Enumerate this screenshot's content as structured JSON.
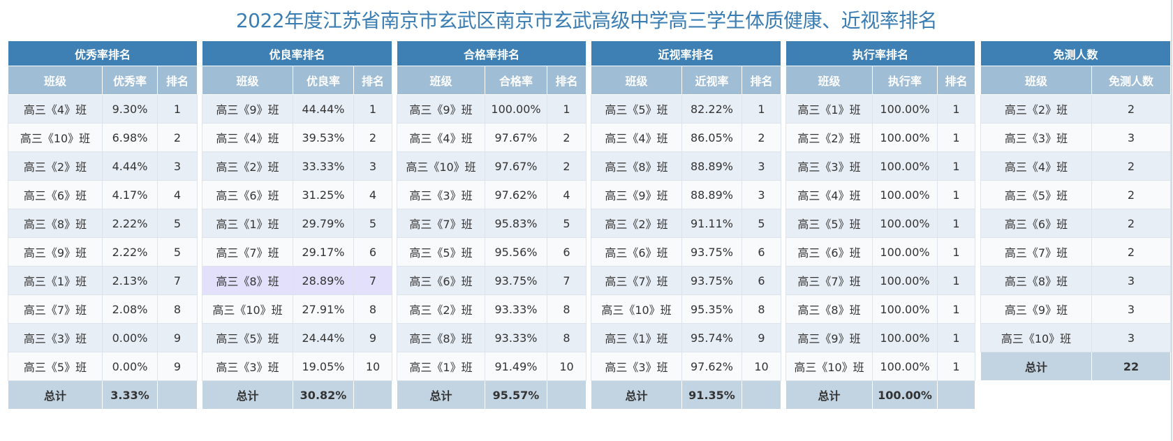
{
  "title": "2022年度江苏省南京市玄武区南京市玄武高级中学高三学生体质健康、近视率排名",
  "colors": {
    "header": "#3f80b4",
    "subheader": "#a0bdd6",
    "row_odd": "#e8eef5",
    "row_even": "#f8fafc",
    "footer": "#c2d3e2",
    "highlight": "#e3e0fb",
    "title": "#3a7db3"
  },
  "tables": [
    {
      "title": "优秀率排名",
      "headers": [
        "班级",
        "优秀率",
        "排名"
      ],
      "rows": [
        [
          "高三《4》班",
          "9.30%",
          "1"
        ],
        [
          "高三《10》班",
          "6.98%",
          "2"
        ],
        [
          "高三《2》班",
          "4.44%",
          "3"
        ],
        [
          "高三《6》班",
          "4.17%",
          "4"
        ],
        [
          "高三《8》班",
          "2.22%",
          "5"
        ],
        [
          "高三《9》班",
          "2.22%",
          "5"
        ],
        [
          "高三《1》班",
          "2.13%",
          "7"
        ],
        [
          "高三《7》班",
          "2.08%",
          "8"
        ],
        [
          "高三《3》班",
          "0.00%",
          "9"
        ],
        [
          "高三《5》班",
          "0.00%",
          "9"
        ]
      ],
      "footer": [
        "总计",
        "3.33%",
        ""
      ]
    },
    {
      "title": "优良率排名",
      "headers": [
        "班级",
        "优良率",
        "排名"
      ],
      "rows": [
        [
          "高三《9》班",
          "44.44%",
          "1"
        ],
        [
          "高三《4》班",
          "39.53%",
          "2"
        ],
        [
          "高三《2》班",
          "33.33%",
          "3"
        ],
        [
          "高三《6》班",
          "31.25%",
          "4"
        ],
        [
          "高三《1》班",
          "29.79%",
          "5"
        ],
        [
          "高三《7》班",
          "29.17%",
          "6"
        ],
        [
          "高三《8》班",
          "28.89%",
          "7"
        ],
        [
          "高三《10》班",
          "27.91%",
          "8"
        ],
        [
          "高三《5》班",
          "24.44%",
          "9"
        ],
        [
          "高三《3》班",
          "19.05%",
          "10"
        ]
      ],
      "footer": [
        "总计",
        "30.82%",
        ""
      ]
    },
    {
      "title": "合格率排名",
      "headers": [
        "班级",
        "合格率",
        "排名"
      ],
      "rows": [
        [
          "高三《9》班",
          "100.00%",
          "1"
        ],
        [
          "高三《4》班",
          "97.67%",
          "2"
        ],
        [
          "高三《10》班",
          "97.67%",
          "2"
        ],
        [
          "高三《3》班",
          "97.62%",
          "4"
        ],
        [
          "高三《7》班",
          "95.83%",
          "5"
        ],
        [
          "高三《5》班",
          "95.56%",
          "6"
        ],
        [
          "高三《6》班",
          "93.75%",
          "7"
        ],
        [
          "高三《2》班",
          "93.33%",
          "8"
        ],
        [
          "高三《8》班",
          "93.33%",
          "8"
        ],
        [
          "高三《1》班",
          "91.49%",
          "10"
        ]
      ],
      "footer": [
        "总计",
        "95.57%",
        ""
      ]
    },
    {
      "title": "近视率排名",
      "headers": [
        "班级",
        "近视率",
        "排名"
      ],
      "rows": [
        [
          "高三《5》班",
          "82.22%",
          "1"
        ],
        [
          "高三《4》班",
          "86.05%",
          "2"
        ],
        [
          "高三《8》班",
          "88.89%",
          "3"
        ],
        [
          "高三《9》班",
          "88.89%",
          "3"
        ],
        [
          "高三《2》班",
          "91.11%",
          "5"
        ],
        [
          "高三《6》班",
          "93.75%",
          "6"
        ],
        [
          "高三《7》班",
          "93.75%",
          "6"
        ],
        [
          "高三《10》班",
          "95.35%",
          "8"
        ],
        [
          "高三《1》班",
          "95.74%",
          "9"
        ],
        [
          "高三《3》班",
          "97.62%",
          "10"
        ]
      ],
      "footer": [
        "总计",
        "91.35%",
        ""
      ]
    },
    {
      "title": "执行率排名",
      "headers": [
        "班级",
        "执行率",
        "排名"
      ],
      "rows": [
        [
          "高三《1》班",
          "100.00%",
          "1"
        ],
        [
          "高三《2》班",
          "100.00%",
          "1"
        ],
        [
          "高三《3》班",
          "100.00%",
          "1"
        ],
        [
          "高三《4》班",
          "100.00%",
          "1"
        ],
        [
          "高三《5》班",
          "100.00%",
          "1"
        ],
        [
          "高三《6》班",
          "100.00%",
          "1"
        ],
        [
          "高三《7》班",
          "100.00%",
          "1"
        ],
        [
          "高三《8》班",
          "100.00%",
          "1"
        ],
        [
          "高三《9》班",
          "100.00%",
          "1"
        ],
        [
          "高三《10》班",
          "100.00%",
          "1"
        ]
      ],
      "footer": [
        "总计",
        "100.00%",
        ""
      ]
    },
    {
      "title": "免测人数",
      "headers": [
        "班级",
        "免测人数"
      ],
      "rows": [
        [
          "高三《2》班",
          "2"
        ],
        [
          "高三《3》班",
          "3"
        ],
        [
          "高三《4》班",
          "2"
        ],
        [
          "高三《5》班",
          "2"
        ],
        [
          "高三《6》班",
          "2"
        ],
        [
          "高三《7》班",
          "2"
        ],
        [
          "高三《8》班",
          "3"
        ],
        [
          "高三《9》班",
          "3"
        ],
        [
          "高三《10》班",
          "3"
        ]
      ],
      "footer": [
        "总计",
        "22"
      ]
    }
  ]
}
